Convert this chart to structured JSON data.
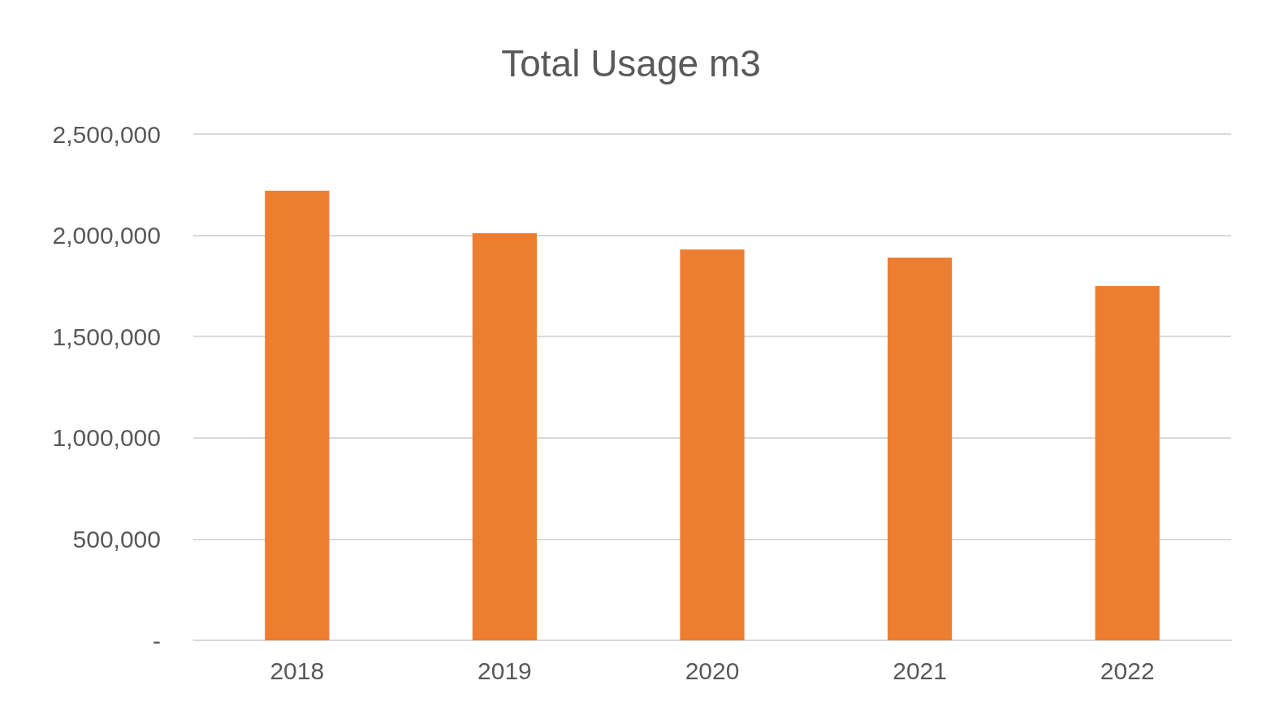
{
  "chart_data": {
    "type": "bar",
    "title": "Total Usage m3",
    "categories": [
      "2018",
      "2019",
      "2020",
      "2021",
      "2022"
    ],
    "values": [
      2220000,
      2010000,
      1930000,
      1890000,
      1750000
    ],
    "color": "#ed7d31",
    "ylim": [
      0,
      2500000
    ],
    "yticks": [
      {
        "value": 0,
        "label": "-"
      },
      {
        "value": 500000,
        "label": "500,000"
      },
      {
        "value": 1000000,
        "label": "1,000,000"
      },
      {
        "value": 1500000,
        "label": "1,500,000"
      },
      {
        "value": 2000000,
        "label": "2,000,000"
      },
      {
        "value": 2500000,
        "label": "2,500,000"
      }
    ],
    "grid": true
  }
}
